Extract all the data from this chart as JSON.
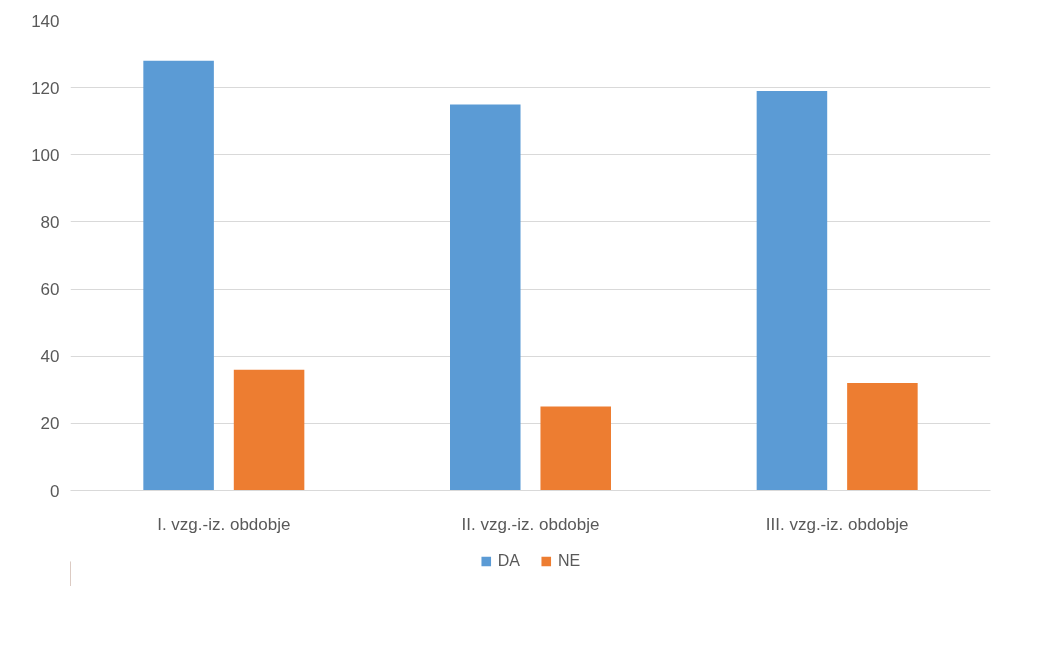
{
  "chart_data": {
    "type": "bar",
    "categories": [
      "I. vzg.-iz. obdobje",
      "II. vzg.-iz. obdobje",
      "III. vzg.-iz. obdobje"
    ],
    "series": [
      {
        "name": "DA",
        "color": "#5b9bd5",
        "values": [
          128,
          115,
          119
        ]
      },
      {
        "name": "NE",
        "color": "#ed7d31",
        "values": [
          36,
          25,
          32
        ]
      }
    ],
    "ylim": [
      0,
      140
    ],
    "yticks": [
      0,
      20,
      40,
      60,
      80,
      100,
      120,
      140
    ],
    "grid": "y",
    "legend": "bottom"
  }
}
